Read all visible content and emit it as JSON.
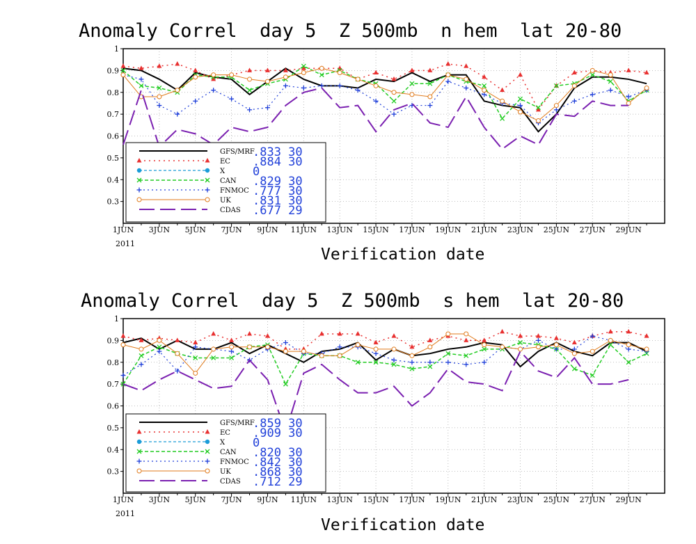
{
  "chart_data": [
    {
      "type": "line",
      "title": "Anomaly Correl  day 5  Z 500mb  n hem  lat 20-80",
      "xlabel": "Verification date",
      "ylabel": "",
      "ylim": [
        0.2,
        1.0
      ],
      "yticks": [
        "1",
        "0.9",
        "0.8",
        "0.7",
        "0.6",
        "0.5",
        "0.4",
        "0.3"
      ],
      "x_ticks": [
        "1JUN",
        "3JUN",
        "5JUN",
        "7JUN",
        "9JUN",
        "11JUN",
        "13JUN",
        "15JUN",
        "17JUN",
        "19JUN",
        "21JUN",
        "23JUN",
        "25JUN",
        "27JUN",
        "29JUN"
      ],
      "x_year": "2011",
      "x_days": [
        1,
        2,
        3,
        4,
        5,
        6,
        7,
        8,
        9,
        10,
        11,
        12,
        13,
        14,
        15,
        16,
        17,
        18,
        19,
        20,
        21,
        22,
        23,
        24,
        25,
        26,
        27,
        28,
        29,
        30
      ],
      "grid": true,
      "legend_position": "bottom-left",
      "series": [
        {
          "name": "GFS/MRF",
          "mean": ".833",
          "count": "30",
          "color": "#000000",
          "dash": "",
          "marker": "none",
          "width": 2,
          "values": [
            0.91,
            0.9,
            0.86,
            0.81,
            0.89,
            0.87,
            0.86,
            0.79,
            0.85,
            0.91,
            0.86,
            0.83,
            0.83,
            0.82,
            0.86,
            0.85,
            0.89,
            0.85,
            0.88,
            0.88,
            0.76,
            0.74,
            0.73,
            0.62,
            0.7,
            0.82,
            0.87,
            0.87,
            0.86,
            0.84
          ]
        },
        {
          "name": "EC",
          "mean": ".884",
          "count": "30",
          "color": "#e83030",
          "dash": "2,5",
          "marker": "triangle",
          "width": 1.5,
          "values": [
            0.92,
            0.91,
            0.92,
            0.93,
            0.9,
            0.86,
            0.88,
            0.9,
            0.9,
            0.9,
            0.91,
            0.91,
            0.91,
            0.86,
            0.89,
            0.86,
            0.9,
            0.9,
            0.93,
            0.92,
            0.87,
            0.81,
            0.88,
            0.72,
            0.83,
            0.89,
            0.9,
            0.89,
            0.9,
            0.89
          ]
        },
        {
          "name": "X",
          "mean": "0",
          "count": "",
          "color": "#1a9cd8",
          "dash": "4,3",
          "marker": "circle",
          "width": 1.2,
          "values": []
        },
        {
          "name": "CAN",
          "mean": ".829",
          "count": "30",
          "color": "#22cc22",
          "dash": "5,3",
          "marker": "x",
          "width": 1.5,
          "values": [
            0.9,
            0.83,
            0.82,
            0.8,
            0.88,
            0.87,
            0.87,
            0.81,
            0.84,
            0.86,
            0.92,
            0.88,
            0.9,
            0.86,
            0.84,
            0.76,
            0.84,
            0.84,
            0.88,
            0.85,
            0.83,
            0.68,
            0.77,
            0.73,
            0.83,
            0.84,
            0.88,
            0.85,
            0.76,
            0.81
          ]
        },
        {
          "name": "FNMOC",
          "mean": ".777",
          "count": "30",
          "color": "#1f3fd9",
          "dash": "2,4",
          "marker": "plus",
          "width": 1.2,
          "values": [
            0.88,
            0.86,
            0.74,
            0.7,
            0.76,
            0.81,
            0.77,
            0.72,
            0.73,
            0.83,
            0.82,
            0.83,
            0.83,
            0.81,
            0.76,
            0.7,
            0.74,
            0.74,
            0.85,
            0.82,
            0.79,
            0.75,
            0.74,
            0.66,
            0.72,
            0.76,
            0.79,
            0.81,
            0.78,
            0.81
          ]
        },
        {
          "name": "UK",
          "mean": ".831",
          "count": "30",
          "color": "#e07a1a",
          "dash": "",
          "marker": "ocircle",
          "width": 1,
          "values": [
            0.88,
            0.78,
            0.78,
            0.81,
            0.87,
            0.88,
            0.88,
            0.86,
            0.85,
            0.87,
            0.89,
            0.91,
            0.89,
            0.86,
            0.83,
            0.8,
            0.79,
            0.78,
            0.88,
            0.86,
            0.81,
            0.76,
            0.71,
            0.67,
            0.74,
            0.83,
            0.9,
            0.88,
            0.75,
            0.82
          ]
        },
        {
          "name": "CDAS",
          "mean": ".677",
          "count": "29",
          "color": "#7a1fb0",
          "dash": "22,8",
          "marker": "none",
          "width": 2,
          "values": [
            0.56,
            0.81,
            0.55,
            0.63,
            0.61,
            0.56,
            0.64,
            0.62,
            0.64,
            0.74,
            0.8,
            0.82,
            0.73,
            0.74,
            0.62,
            0.72,
            0.75,
            0.66,
            0.64,
            0.78,
            0.64,
            0.54,
            0.6,
            0.56,
            0.7,
            0.69,
            0.76,
            0.74,
            0.74,
            null
          ]
        }
      ]
    },
    {
      "type": "line",
      "title": "Anomaly Correl  day 5  Z 500mb  s hem  lat 20-80",
      "xlabel": "Verification date",
      "ylabel": "",
      "ylim": [
        0.2,
        1.0
      ],
      "yticks": [
        "1",
        "0.9",
        "0.8",
        "0.7",
        "0.6",
        "0.5",
        "0.4",
        "0.3"
      ],
      "x_ticks": [
        "1JUN",
        "3JUN",
        "5JUN",
        "7JUN",
        "9JUN",
        "11JUN",
        "13JUN",
        "15JUN",
        "17JUN",
        "19JUN",
        "21JUN",
        "23JUN",
        "25JUN",
        "27JUN",
        "29JUN"
      ],
      "x_year": "2011",
      "x_days": [
        1,
        2,
        3,
        4,
        5,
        6,
        7,
        8,
        9,
        10,
        11,
        12,
        13,
        14,
        15,
        16,
        17,
        18,
        19,
        20,
        21,
        22,
        23,
        24,
        25,
        26,
        27,
        28,
        29,
        30
      ],
      "grid": true,
      "legend_position": "bottom-left",
      "series": [
        {
          "name": "GFS/MRF",
          "mean": ".859",
          "count": "30",
          "color": "#000000",
          "dash": "",
          "marker": "none",
          "width": 2,
          "values": [
            0.89,
            0.91,
            0.86,
            0.9,
            0.86,
            0.86,
            0.89,
            0.84,
            0.88,
            0.84,
            0.8,
            0.85,
            0.86,
            0.89,
            0.81,
            0.86,
            0.83,
            0.84,
            0.86,
            0.87,
            0.89,
            0.88,
            0.78,
            0.85,
            0.89,
            0.85,
            0.83,
            0.89,
            0.89,
            0.85
          ]
        },
        {
          "name": "EC",
          "mean": ".909",
          "count": "30",
          "color": "#e83030",
          "dash": "2,5",
          "marker": "triangle",
          "width": 1.5,
          "values": [
            0.92,
            0.9,
            0.91,
            0.9,
            0.89,
            0.93,
            0.9,
            0.93,
            0.92,
            0.86,
            0.86,
            0.93,
            0.93,
            0.93,
            0.89,
            0.92,
            0.87,
            0.9,
            0.92,
            0.9,
            0.9,
            0.94,
            0.92,
            0.92,
            0.91,
            0.89,
            0.92,
            0.94,
            0.94,
            0.92
          ]
        },
        {
          "name": "X",
          "mean": "0",
          "count": "",
          "color": "#1a9cd8",
          "dash": "4,3",
          "marker": "circle",
          "width": 1.2,
          "values": []
        },
        {
          "name": "CAN",
          "mean": ".820",
          "count": "30",
          "color": "#22cc22",
          "dash": "5,3",
          "marker": "x",
          "width": 1.5,
          "values": [
            0.7,
            0.83,
            0.87,
            0.84,
            0.82,
            0.82,
            0.82,
            0.87,
            0.88,
            0.7,
            0.84,
            0.83,
            0.83,
            0.8,
            0.8,
            0.79,
            0.77,
            0.78,
            0.84,
            0.83,
            0.86,
            0.86,
            0.89,
            0.88,
            0.86,
            0.77,
            0.74,
            0.88,
            0.8,
            0.84
          ]
        },
        {
          "name": "FNMOC",
          "mean": ".842",
          "count": "30",
          "color": "#1f3fd9",
          "dash": "2,4",
          "marker": "plus",
          "width": 1.2,
          "values": [
            0.74,
            0.79,
            0.85,
            0.76,
            0.87,
            0.86,
            0.85,
            0.81,
            0.86,
            0.89,
            0.84,
            0.84,
            0.87,
            0.87,
            0.84,
            0.81,
            0.8,
            0.8,
            0.8,
            0.79,
            0.8,
            0.87,
            0.86,
            0.9,
            0.86,
            0.86,
            0.92,
            0.9,
            0.86,
            0.85
          ]
        },
        {
          "name": "UK",
          "mean": ".868",
          "count": "30",
          "color": "#e07a1a",
          "dash": "",
          "marker": "ocircle",
          "width": 1,
          "values": [
            0.88,
            0.86,
            0.9,
            0.84,
            0.75,
            0.86,
            0.87,
            0.87,
            0.87,
            0.85,
            0.85,
            0.83,
            0.83,
            0.88,
            0.86,
            0.86,
            0.83,
            0.87,
            0.93,
            0.93,
            0.88,
            0.87,
            0.86,
            0.87,
            0.88,
            0.84,
            0.85,
            0.9,
            0.88,
            0.86
          ]
        },
        {
          "name": "CDAS",
          "mean": ".712",
          "count": "29",
          "color": "#7a1fb0",
          "dash": "22,8",
          "marker": "none",
          "width": 2,
          "values": [
            0.7,
            0.67,
            0.72,
            0.76,
            0.72,
            0.68,
            0.69,
            0.81,
            0.72,
            0.48,
            0.75,
            0.79,
            0.72,
            0.66,
            0.66,
            0.69,
            0.6,
            0.66,
            0.77,
            0.71,
            0.7,
            0.67,
            0.85,
            0.76,
            0.73,
            0.82,
            0.7,
            0.7,
            0.72,
            null
          ]
        }
      ]
    }
  ]
}
